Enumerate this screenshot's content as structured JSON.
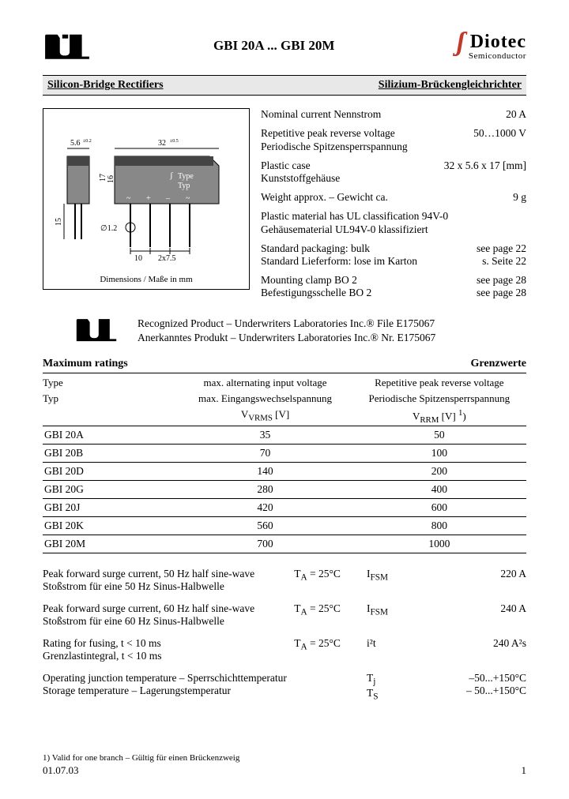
{
  "header": {
    "part_title": "GBI 20A ... GBI 20M",
    "brand": "Diotec",
    "brand_sub": "Semiconductor"
  },
  "section_bar": {
    "left": "Silicon-Bridge Rectifiers",
    "right": "Silizium-Brückengleichrichter"
  },
  "diagram": {
    "caption": "Dimensions / Maße in mm",
    "labels": {
      "w1": "5.6",
      "w1tol": "±0.2",
      "w2": "32",
      "w2tol": "±0.5",
      "h1": "17",
      "h1tol": "±0.5",
      "h2": "16",
      "h2tol": "±0.5",
      "lead": "15",
      "dia": "∅1.2",
      "p1": "10",
      "p2": "2x7.5",
      "type": "Type",
      "typ": "Typ"
    }
  },
  "specs": [
    {
      "l1": "Nominal current    Nennstrom",
      "r": "20 A"
    },
    {
      "l1": "Repetitive peak reverse voltage",
      "l2": "Periodische Spitzensperrspannung",
      "r": "50…1000 V"
    },
    {
      "l1": "Plastic case",
      "l2": "Kunststoffgehäuse",
      "r": "32 x 5.6 x 17 [mm]"
    },
    {
      "l1": "Weight approx. – Gewicht ca.",
      "r": "9 g"
    },
    {
      "l1": "Plastic material has UL classification 94V-0",
      "l2": "Gehäusematerial UL94V-0 klassifiziert",
      "r": ""
    },
    {
      "l1": "Standard packaging: bulk",
      "l2": "Standard Lieferform: lose im Karton",
      "r": "see page 22",
      "r2": "s. Seite 22"
    },
    {
      "l1": "Mounting clamp BO 2",
      "l2": "Befestigungsschelle BO 2",
      "r": "see page 28",
      "r2": "see page 28"
    }
  ],
  "ul_text": {
    "line1": "Recognized Product – Underwriters Laboratories Inc.® File E175067",
    "line2": "Anerkanntes Produkt – Underwriters Laboratories Inc.® Nr. E175067"
  },
  "ratings": {
    "title_left": "Maximum ratings",
    "title_right": "Grenzwerte",
    "col1a": "Type",
    "col1b": "Typ",
    "col2a": "max. alternating input voltage",
    "col2b": "max. Eingangswechselspannung",
    "col2c": "V",
    "col2sub": "VRMS",
    "col2unit": " [V]",
    "col3a": "Repetitive peak reverse voltage",
    "col3b": "Periodische Spitzensperrspannung",
    "col3sub": "V",
    "col3sub2": "RRM",
    "col3unit": " [V] ",
    "col3note": "1)",
    "rows": [
      {
        "type": "GBI 20A",
        "v": "35",
        "vrrm": "50"
      },
      {
        "type": "GBI 20B",
        "v": "70",
        "vrrm": "100"
      },
      {
        "type": "GBI 20D",
        "v": "140",
        "vrrm": "200"
      },
      {
        "type": "GBI 20G",
        "v": "280",
        "vrrm": "400"
      },
      {
        "type": "GBI 20J",
        "v": "420",
        "vrrm": "600"
      },
      {
        "type": "GBI 20K",
        "v": "560",
        "vrrm": "800"
      },
      {
        "type": "GBI 20M",
        "v": "700",
        "vrrm": "1000"
      }
    ]
  },
  "params": [
    {
      "d1": "Peak forward surge current, 50 Hz half sine-wave",
      "d2": "Stoßstrom für eine 50 Hz Sinus-Halbwelle",
      "cond": "T",
      "condsub": "A",
      "condrest": " = 25°C",
      "sym": "I",
      "symsub": "FSM",
      "val": "220 A"
    },
    {
      "d1": "Peak forward surge current, 60 Hz half sine-wave",
      "d2": "Stoßstrom für eine 60 Hz Sinus-Halbwelle",
      "cond": "T",
      "condsub": "A",
      "condrest": " = 25°C",
      "sym": "I",
      "symsub": "FSM",
      "val": "240 A"
    },
    {
      "d1": "Rating for fusing, t < 10 ms",
      "d2": "Grenzlastintegral, t < 10 ms",
      "cond": "T",
      "condsub": "A",
      "condrest": " = 25°C",
      "sym": "i²t",
      "symsub": "",
      "val": "240 A²s"
    },
    {
      "d1": "Operating junction temperature – Sperrschichttemperatur",
      "d2": "Storage temperature – Lagerungstemperatur",
      "cond": "",
      "condsub": "",
      "condrest": "",
      "sym": "T",
      "symsub": "j",
      "sym2": "T",
      "sym2sub": "S",
      "val": "–50...+150°C",
      "val2": "– 50...+150°C"
    }
  ],
  "footer": {
    "note": "1)   Valid for one branch – Gültig für einen Brückenzweig",
    "date": "01.07.03",
    "page": "1"
  },
  "colors": {
    "brand_red": "#c0392b",
    "section_bg": "#e8e8e8"
  }
}
